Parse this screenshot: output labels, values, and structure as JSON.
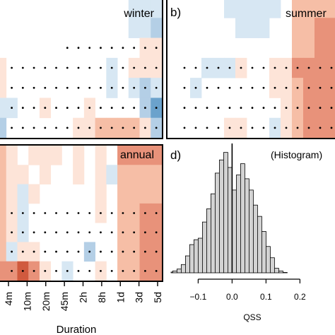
{
  "chart_data": [
    {
      "type": "heatmap",
      "panel_label": "",
      "title": "winter",
      "rows": 7,
      "cols": 15,
      "colors": {
        "1": "#fde4d8",
        "2": "#f6bea6",
        "3": "#e8927a",
        "4": "#d05a3e",
        "-1": "#d7e7f3",
        "-2": "#b4cfe6",
        "-3": "#6ba2cc"
      },
      "cells": [
        [
          0,
          0,
          0,
          0,
          0,
          0,
          0,
          0,
          0,
          0,
          0,
          0,
          -1,
          -1,
          -1
        ],
        [
          0,
          0,
          0,
          0,
          0,
          0,
          0,
          0,
          0,
          0,
          0,
          0,
          -1,
          -1,
          -2
        ],
        [
          0,
          0,
          0,
          0,
          0,
          0,
          0,
          0,
          0,
          0,
          0,
          0,
          0,
          1,
          1
        ],
        [
          1,
          0,
          0,
          0,
          0,
          0,
          0,
          0,
          0,
          0,
          -1,
          0,
          1,
          1,
          1
        ],
        [
          1,
          0,
          0,
          0,
          0,
          0,
          0,
          0,
          0,
          0,
          -1,
          0,
          -1,
          -2,
          -1
        ],
        [
          -1,
          -1,
          0,
          0,
          1,
          0,
          0,
          0,
          1,
          0,
          0,
          0,
          0,
          -2,
          -3
        ],
        [
          -2,
          0,
          0,
          0,
          0,
          0,
          0,
          1,
          1,
          2,
          2,
          2,
          2,
          1,
          -2
        ]
      ],
      "dot_start": [
        null,
        null,
        6,
        1,
        1,
        1,
        1
      ]
    },
    {
      "type": "heatmap",
      "panel_label": "b)",
      "title": "summer",
      "rows": 7,
      "cols": 15,
      "colors": {
        "1": "#fde4d8",
        "2": "#f6bea6",
        "3": "#e8927a",
        "4": "#d05a3e",
        "-1": "#d7e7f3",
        "-2": "#b4cfe6",
        "-3": "#6ba2cc"
      },
      "cells": [
        [
          0,
          0,
          0,
          0,
          0,
          -1,
          -1,
          -1,
          -1,
          -1,
          0,
          2,
          2,
          2,
          2
        ],
        [
          0,
          0,
          0,
          0,
          0,
          0,
          -1,
          -1,
          -1,
          0,
          0,
          2,
          2,
          3,
          3
        ],
        [
          0,
          0,
          0,
          0,
          0,
          0,
          0,
          0,
          0,
          0,
          0,
          2,
          2,
          3,
          3
        ],
        [
          0,
          0,
          0,
          -1,
          -1,
          -1,
          1,
          0,
          0,
          1,
          1,
          3,
          3,
          3,
          3
        ],
        [
          0,
          0,
          -1,
          0,
          0,
          0,
          0,
          0,
          0,
          1,
          1,
          2,
          3,
          3,
          3
        ],
        [
          0,
          0,
          0,
          0,
          0,
          0,
          0,
          0,
          0,
          0,
          1,
          2,
          3,
          3,
          3
        ],
        [
          0,
          0,
          0,
          0,
          0,
          1,
          1,
          0,
          0,
          -1,
          1,
          2,
          3,
          3,
          3
        ]
      ],
      "dot_start": [
        null,
        null,
        null,
        1,
        1,
        1,
        1
      ]
    },
    {
      "type": "heatmap",
      "panel_label": "",
      "title": "annual",
      "rows": 7,
      "cols": 15,
      "colors": {
        "1": "#fde4d8",
        "2": "#f6bea6",
        "3": "#e8927a",
        "4": "#d05a3e",
        "-1": "#d7e7f3",
        "-2": "#b4cfe6",
        "-3": "#6ba2cc"
      },
      "cells": [
        [
          2,
          1,
          0,
          1,
          1,
          1,
          0,
          1,
          0,
          1,
          0,
          3,
          3,
          3,
          3
        ],
        [
          2,
          1,
          1,
          0,
          1,
          0,
          0,
          1,
          0,
          1,
          -1,
          2,
          2,
          2,
          2
        ],
        [
          2,
          1,
          -1,
          1,
          0,
          0,
          0,
          0,
          0,
          1,
          0,
          2,
          2,
          2,
          2
        ],
        [
          2,
          1,
          -1,
          0,
          0,
          0,
          0,
          0,
          0,
          1,
          0,
          2,
          2,
          3,
          3
        ],
        [
          2,
          1,
          -1,
          0,
          0,
          0,
          0,
          0,
          0,
          0,
          0,
          2,
          2,
          3,
          3
        ],
        [
          2,
          -1,
          1,
          1,
          0,
          0,
          0,
          0,
          -2,
          0,
          0,
          2,
          2,
          3,
          3
        ],
        [
          3,
          3,
          4,
          3,
          1,
          0,
          -1,
          0,
          0,
          1,
          0,
          2,
          2,
          3,
          3
        ]
      ],
      "dot_start": [
        null,
        null,
        null,
        1,
        1,
        1,
        1
      ]
    },
    {
      "type": "bar",
      "panel_label": "d)",
      "title": "(Histogram)",
      "xlabel": "QSS",
      "xlim": [
        -0.18,
        0.27
      ],
      "xticks": [
        "−0.1",
        "0.0",
        "0.1",
        "0.2"
      ],
      "xtick_values": [
        -0.1,
        0.0,
        0.1,
        0.2
      ],
      "bin_width": 0.0125,
      "bin_start": -0.2,
      "values": [
        0,
        2,
        5,
        10,
        22,
        45,
        75,
        88,
        92,
        135,
        170,
        210,
        265,
        300,
        320,
        280,
        220,
        260,
        290,
        250,
        220,
        180,
        150,
        110,
        70,
        40,
        12,
        5,
        1,
        0
      ],
      "ymax": 340,
      "vline_x": 0.0,
      "bar_color": "#d3d3d3"
    }
  ],
  "xaxis": {
    "ticks": [
      "4m",
      "10m",
      "20m",
      "45m",
      "2h",
      "8h",
      "1d",
      "3d",
      "5d"
    ],
    "label": "Duration"
  }
}
